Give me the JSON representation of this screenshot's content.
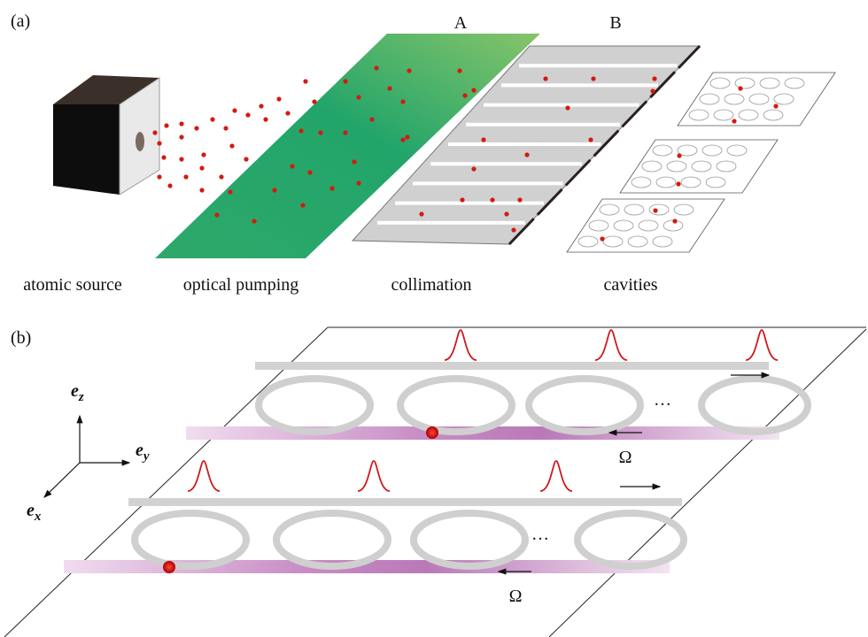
{
  "panel_a": {
    "label": "(a)",
    "markers": [
      "A",
      "B"
    ],
    "stages": [
      "atomic source",
      "optical pumping",
      "collimation",
      "cavities"
    ]
  },
  "panel_b": {
    "label": "(b)",
    "axes": [
      {
        "symbol": "e",
        "subscript": "z"
      },
      {
        "symbol": "e",
        "subscript": "y"
      },
      {
        "symbol": "e",
        "subscript": "x"
      }
    ],
    "ellipsis": [
      "…",
      "…"
    ],
    "coupling": [
      "Ω",
      "Ω"
    ]
  }
}
